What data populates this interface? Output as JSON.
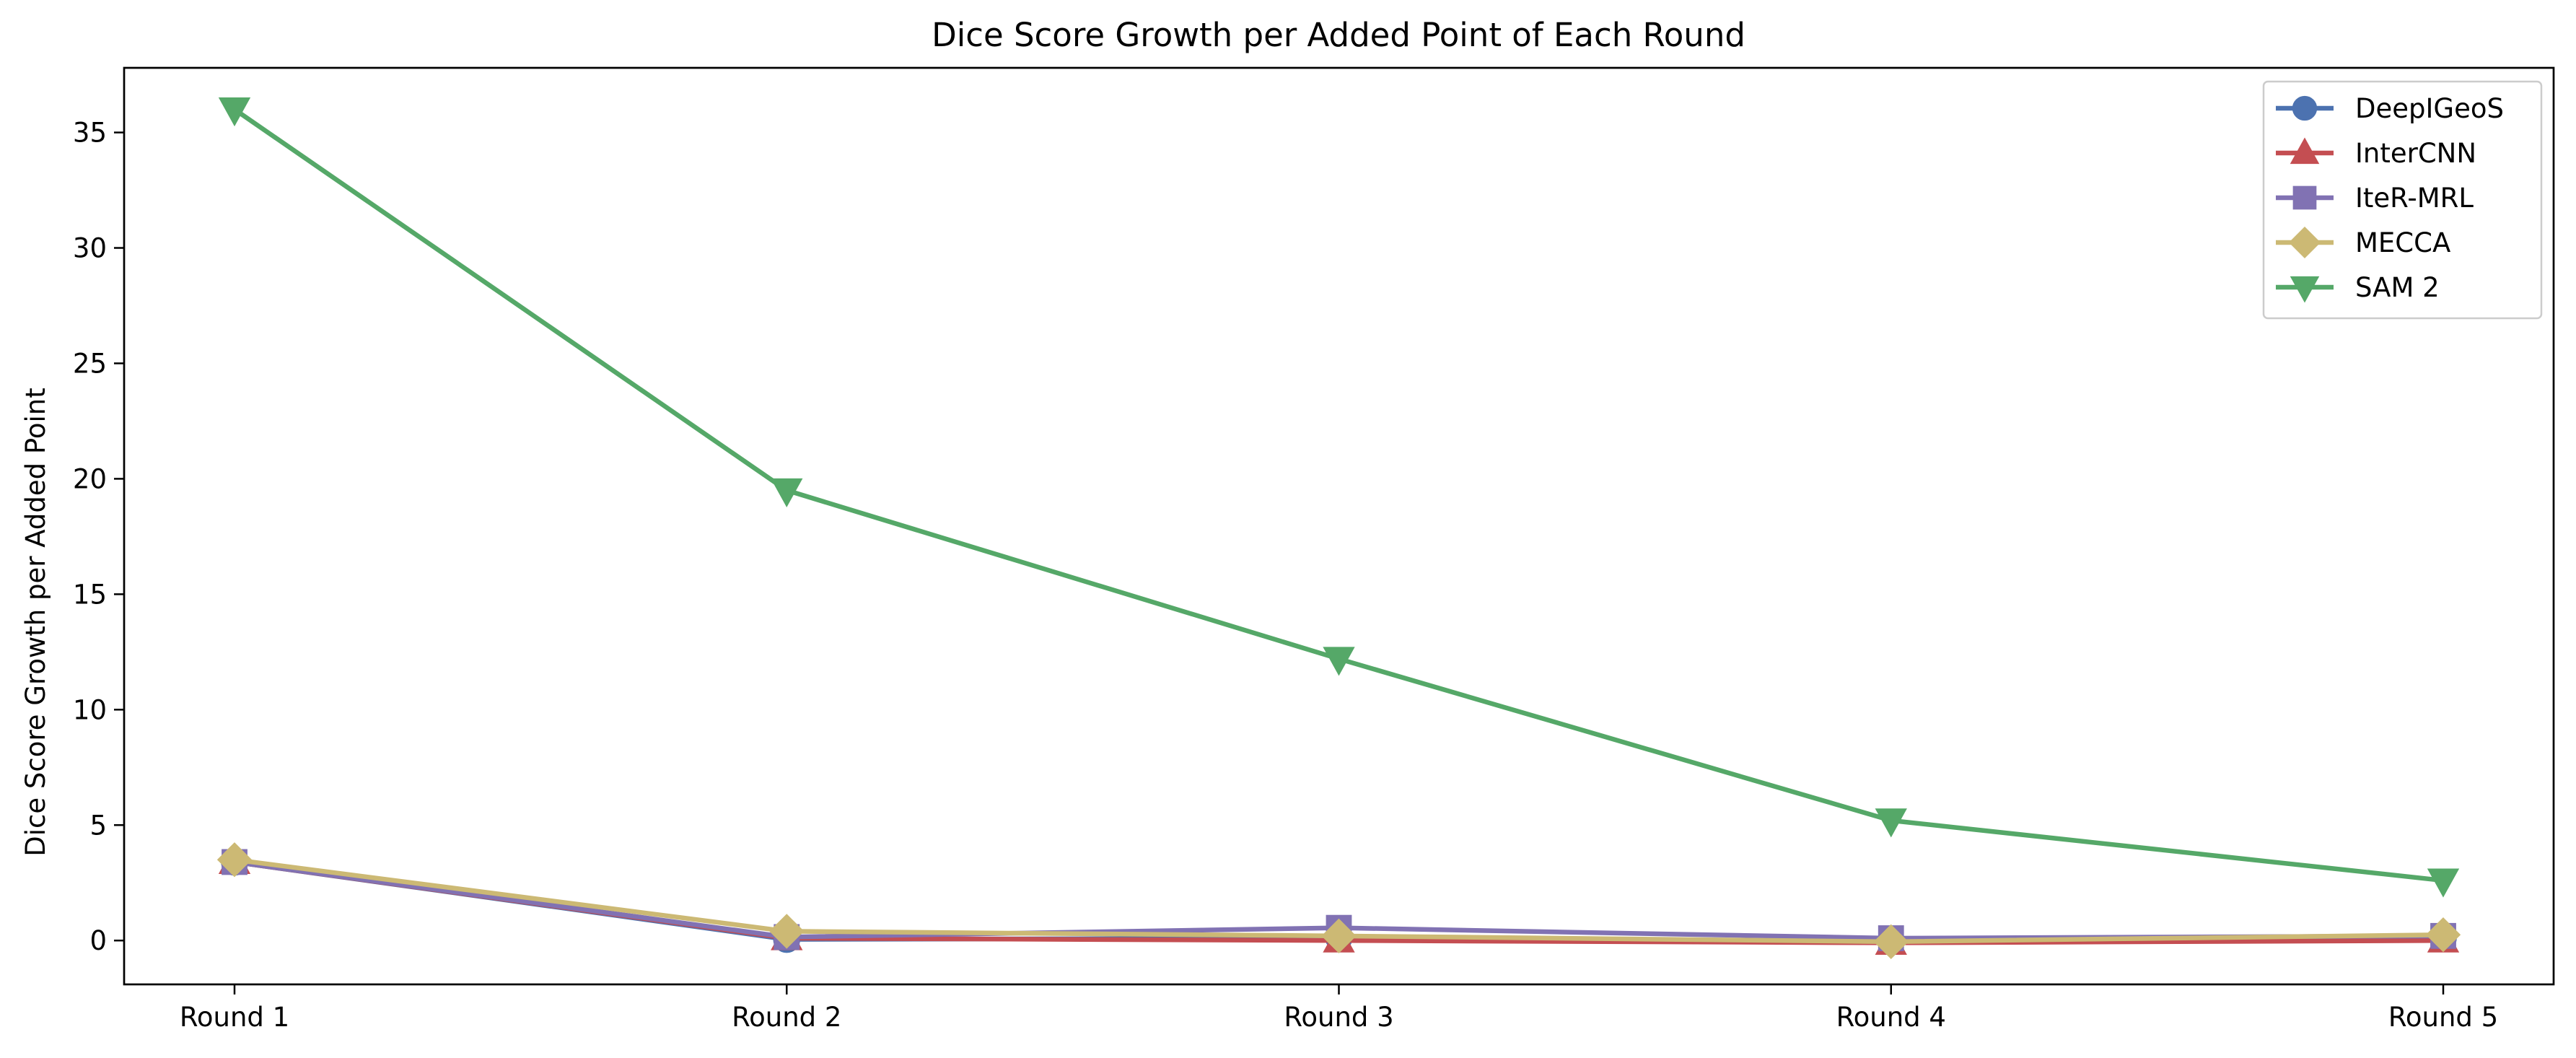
{
  "chart_data": {
    "type": "line",
    "title": "Dice Score Growth per Added Point of Each Round",
    "xlabel": "",
    "ylabel": "Dice Score Growth per Added Point",
    "categories": [
      "Round 1",
      "Round 2",
      "Round 3",
      "Round 4",
      "Round 5"
    ],
    "ylim": [
      -1.9,
      37.8
    ],
    "yticks": [
      0,
      5,
      10,
      15,
      20,
      25,
      30,
      35
    ],
    "grid": false,
    "legend_position": "top-right",
    "series": [
      {
        "name": "DeepIGeoS",
        "color": "#4c72b0",
        "marker": "circle",
        "values": [
          3.4,
          0.05,
          0.1,
          -0.05,
          0.1
        ]
      },
      {
        "name": "InterCNN",
        "color": "#c44e52",
        "marker": "triangle-up",
        "values": [
          3.4,
          0.1,
          0.0,
          -0.1,
          0.0
        ]
      },
      {
        "name": "IteR-MRL",
        "color": "#8172b3",
        "marker": "square",
        "values": [
          3.4,
          0.15,
          0.55,
          0.1,
          0.2
        ]
      },
      {
        "name": "MECCA",
        "color": "#ccb974",
        "marker": "diamond",
        "values": [
          3.5,
          0.4,
          0.2,
          -0.05,
          0.25
        ]
      },
      {
        "name": "SAM 2",
        "color": "#55a868",
        "marker": "triangle-down",
        "values": [
          36.0,
          19.5,
          12.2,
          5.2,
          2.6
        ]
      }
    ]
  }
}
